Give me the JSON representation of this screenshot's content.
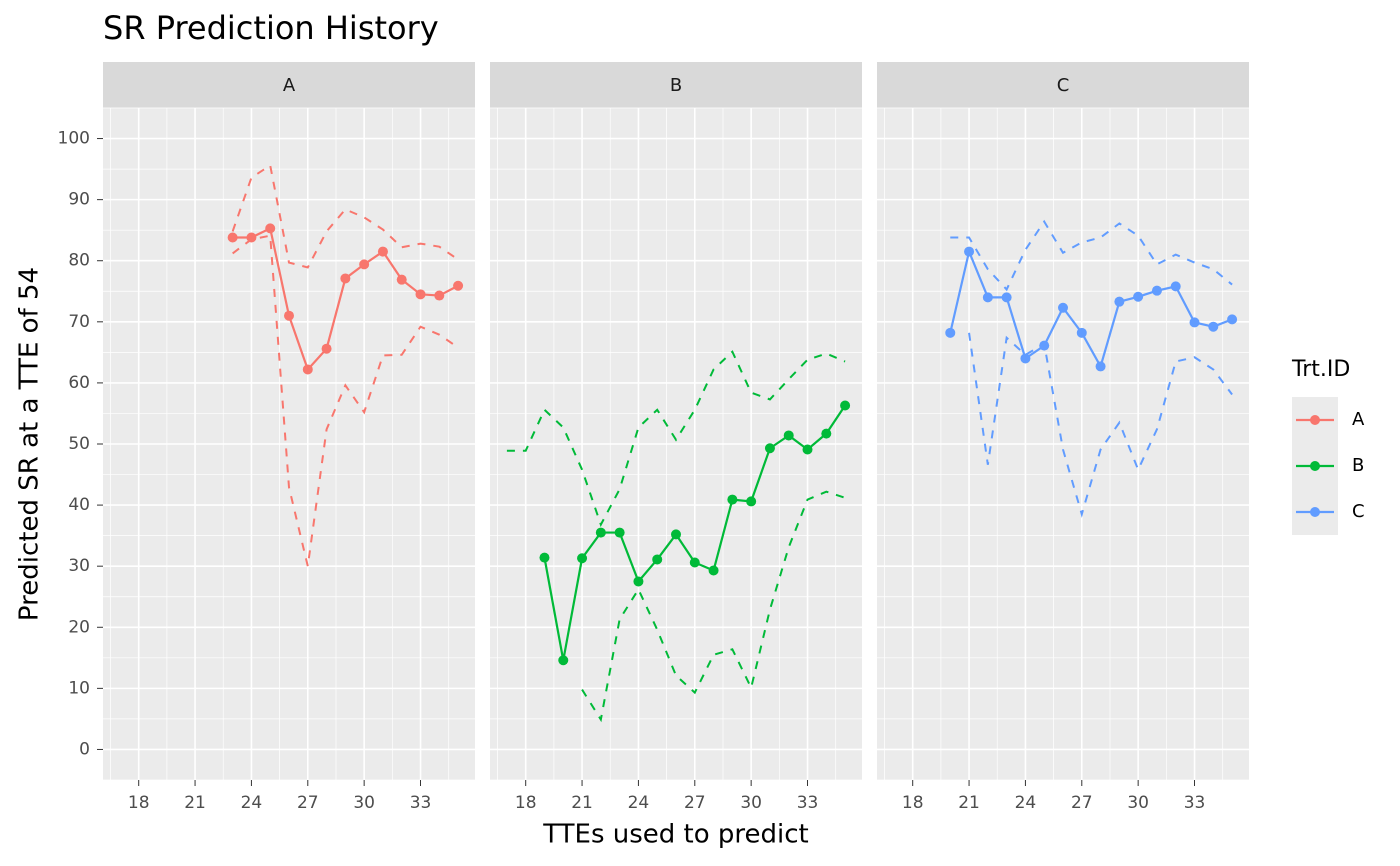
{
  "chart_data": {
    "type": "line",
    "title": "SR Prediction History",
    "xlabel": "TTEs used to predict",
    "ylabel": "Predicted SR at a TTE of 54",
    "legend_title": "Trt.ID",
    "x": [
      17,
      18,
      19,
      20,
      21,
      22,
      23,
      24,
      25,
      26,
      27,
      28,
      29,
      30,
      31,
      32,
      33,
      34,
      35
    ],
    "xlim": [
      16.1,
      35.9
    ],
    "xticks": [
      18,
      21,
      24,
      27,
      30,
      33
    ],
    "ylim": [
      -5,
      105
    ],
    "yticks": [
      0,
      10,
      20,
      30,
      40,
      50,
      60,
      70,
      80,
      90,
      100
    ],
    "grid": true,
    "series": [
      {
        "name": "A",
        "color": "#F8766D",
        "values": [
          null,
          null,
          null,
          null,
          null,
          null,
          83.8,
          83.8,
          85.3,
          71.0,
          62.2,
          65.6,
          77.1,
          79.4,
          81.5,
          76.9,
          74.5,
          74.3,
          75.9
        ],
        "upper": [
          null,
          null,
          null,
          null,
          null,
          null,
          84.8,
          93.6,
          95.6,
          79.7,
          78.9,
          84.8,
          88.4,
          87.1,
          85.1,
          82.2,
          82.8,
          82.3,
          80.2
        ],
        "lower": [
          null,
          null,
          null,
          null,
          null,
          null,
          81.2,
          83.5,
          84.1,
          42.9,
          30.0,
          52.4,
          59.6,
          55.2,
          64.5,
          64.6,
          69.2,
          67.9,
          65.8
        ]
      },
      {
        "name": "B",
        "color": "#00BA38",
        "values": [
          null,
          null,
          31.4,
          14.6,
          31.3,
          35.5,
          35.5,
          27.5,
          31.1,
          35.2,
          30.6,
          29.3,
          40.9,
          40.6,
          49.3,
          51.4,
          49.1,
          51.7,
          56.3
        ],
        "upper": [
          48.9,
          48.9,
          55.6,
          52.7,
          45.8,
          36.8,
          42.6,
          52.7,
          55.6,
          50.7,
          55.6,
          62.2,
          65.1,
          58.4,
          57.3,
          60.6,
          63.8,
          64.8,
          63.5
        ],
        "lower": [
          null,
          null,
          null,
          null,
          9.8,
          4.9,
          21.3,
          26.2,
          19.6,
          12.1,
          9.3,
          15.5,
          16.4,
          10.1,
          22.9,
          33.1,
          40.9,
          42.2,
          41.2
        ]
      },
      {
        "name": "C",
        "color": "#619CFF",
        "values": [
          null,
          null,
          null,
          68.2,
          81.5,
          74.0,
          74.0,
          64.0,
          66.1,
          72.3,
          68.2,
          62.7,
          73.3,
          74.1,
          75.1,
          75.8,
          69.9,
          69.2,
          70.4
        ],
        "upper": [
          null,
          null,
          null,
          83.8,
          83.8,
          78.6,
          75.3,
          81.8,
          86.4,
          81.3,
          83.0,
          83.8,
          86.1,
          84.1,
          79.4,
          81.0,
          79.7,
          78.6,
          76.1
        ],
        "lower": [
          null,
          null,
          null,
          null,
          68.2,
          46.6,
          67.4,
          64.6,
          66.4,
          49.1,
          38.5,
          49.1,
          53.5,
          45.8,
          52.4,
          63.5,
          64.2,
          62.2,
          58.1
        ]
      }
    ]
  }
}
